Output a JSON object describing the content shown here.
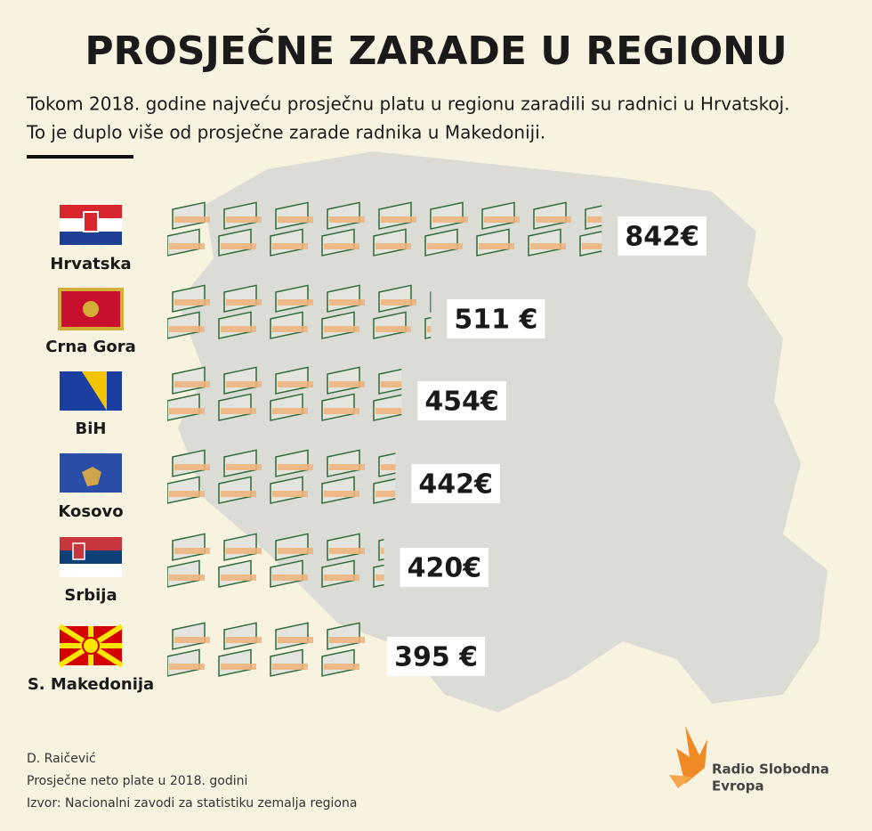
{
  "chart_data": {
    "type": "pictograph",
    "title": "PROSJEČNE ZARADE U REGIONU",
    "subtitle": [
      "Tokom 2018. godine najveću prosječnu platu u regionu zaradili su radnici u Hrvatskoj.",
      "To je duplo više od prosječne zarade radnika u Makedoniji."
    ],
    "categories": [
      "Hrvatska",
      "Crna Gora",
      "BiH",
      "Kosovo",
      "Srbija",
      "S. Makedonija"
    ],
    "values": [
      842,
      511,
      454,
      442,
      420,
      395
    ],
    "value_labels": [
      "842€",
      "511 €",
      "454€",
      "442€",
      "420€",
      "395 €"
    ],
    "author": "D. Raičević",
    "note": "Prosječne neto plate u 2018. godini",
    "source": "Izvor: Nacionalni zavodi za statistiku zemalja regiona",
    "publisher": [
      "Radio Slobodna",
      "Evropa"
    ]
  }
}
